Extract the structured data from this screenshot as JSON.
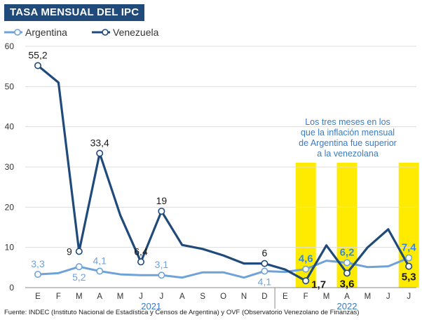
{
  "header": {
    "title": "TASA MENSUAL DEL IPC"
  },
  "legend": {
    "argentina": "Argentina",
    "venezuela": "Venezuela"
  },
  "colors": {
    "argentina": "#6fa2d8",
    "venezuela": "#1f4a7a",
    "highlight": "#ffeb00",
    "grid": "#dddddd",
    "title_bg": "#1f4a7a"
  },
  "annotation": {
    "lines": [
      "Los tres meses en los",
      "que la inflación mensual",
      "de Argentina fue superior",
      "a la venezolana"
    ]
  },
  "source": "Fuente: INDEC (Instituto Nacional de Estadística y Censos de Argentina) y OVF (Observatorio Venezolano de Finanzas)",
  "chart_data": {
    "type": "line",
    "title": "TASA MENSUAL DEL IPC",
    "categories": [
      "E",
      "F",
      "M",
      "A",
      "M",
      "J",
      "J",
      "A",
      "S",
      "O",
      "N",
      "D",
      "E",
      "F",
      "M",
      "A",
      "M",
      "J",
      "J"
    ],
    "years": [
      {
        "label": "2021",
        "start": 0,
        "end": 11
      },
      {
        "label": "2022",
        "start": 12,
        "end": 18
      }
    ],
    "ylim": [
      0,
      60
    ],
    "yticks": [
      0,
      10,
      20,
      30,
      40,
      50,
      60
    ],
    "grid": true,
    "legend_position": "top-left",
    "highlight_indices": [
      13,
      15,
      18
    ],
    "series": [
      {
        "name": "Argentina",
        "values": [
          3.3,
          3.6,
          5.2,
          4.1,
          3.3,
          3.1,
          3.1,
          2.5,
          3.8,
          3.8,
          2.5,
          4.1,
          3.9,
          4.6,
          6.7,
          6.2,
          5.1,
          5.3,
          7.4
        ],
        "labels": [
          {
            "index": 0,
            "text": "3,3",
            "pos": "above"
          },
          {
            "index": 2,
            "text": "5,2",
            "pos": "below"
          },
          {
            "index": 3,
            "text": "4,1",
            "pos": "above"
          },
          {
            "index": 6,
            "text": "3,1",
            "pos": "above"
          },
          {
            "index": 11,
            "text": "4,1",
            "pos": "below"
          },
          {
            "index": 13,
            "text": "4,6",
            "pos": "above"
          },
          {
            "index": 15,
            "text": "6,2",
            "pos": "above"
          },
          {
            "index": 18,
            "text": "7,4",
            "pos": "above"
          }
        ]
      },
      {
        "name": "Venezuela",
        "values": [
          55.2,
          51.0,
          9.0,
          33.4,
          18.0,
          6.4,
          19.0,
          10.6,
          9.6,
          8.0,
          6.0,
          6.0,
          4.5,
          1.7,
          10.5,
          3.6,
          10.0,
          14.5,
          5.3
        ],
        "labels": [
          {
            "index": 0,
            "text": "55,2",
            "pos": "above"
          },
          {
            "index": 2,
            "text": "9",
            "pos": "left"
          },
          {
            "index": 3,
            "text": "33,4",
            "pos": "above"
          },
          {
            "index": 5,
            "text": "6,4",
            "pos": "above"
          },
          {
            "index": 6,
            "text": "19",
            "pos": "above"
          },
          {
            "index": 11,
            "text": "6",
            "pos": "above"
          },
          {
            "index": 13,
            "text": "1,7",
            "pos": "right"
          },
          {
            "index": 15,
            "text": "3,6",
            "pos": "below"
          },
          {
            "index": 18,
            "text": "5,3",
            "pos": "below"
          }
        ]
      }
    ]
  }
}
